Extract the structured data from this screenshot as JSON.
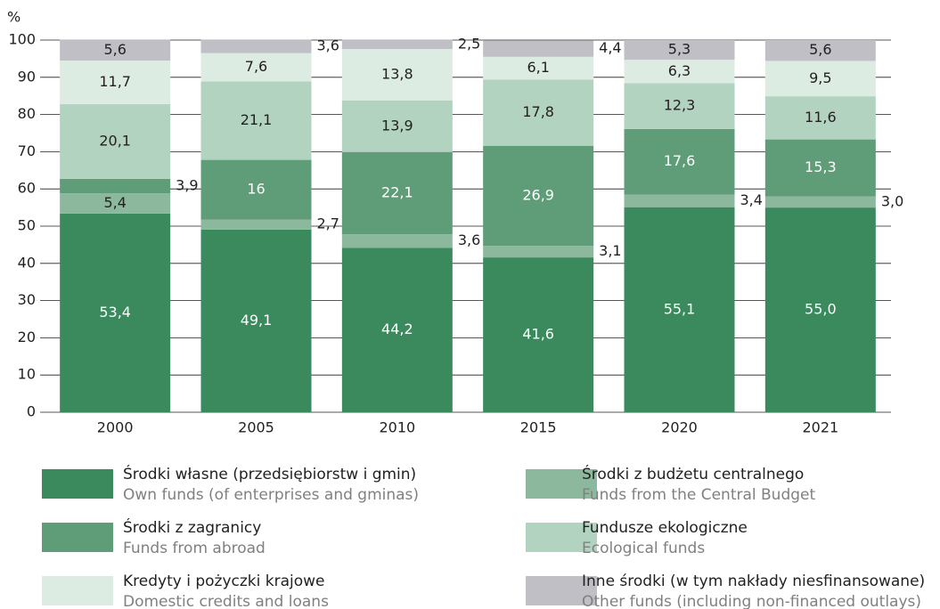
{
  "chart_data": {
    "type": "stacked_bar",
    "y_label": "%",
    "categories": [
      "2000",
      "2005",
      "2010",
      "2015",
      "2020",
      "2021"
    ],
    "ylim": [
      0,
      100
    ],
    "yticks": [
      0,
      10,
      20,
      30,
      40,
      50,
      60,
      70,
      80,
      90,
      100
    ],
    "grid": true,
    "series": [
      {
        "name": "Środki własne (przedsiębiorstw i gmin)",
        "subname": "Own funds (of enterprises and gminas)",
        "color": "#3b8a5d",
        "values": [
          53.4,
          49.1,
          44.2,
          41.6,
          55.1,
          55.0
        ],
        "value_labels": [
          "53,4",
          "49,1",
          "44,2",
          "41,6",
          "55,1",
          "55,0"
        ]
      },
      {
        "name": "Środki z budżetu centralnego",
        "subname": "Funds from the Central Budget",
        "color": "#8cb99d",
        "values": [
          5.4,
          2.7,
          3.6,
          3.1,
          3.4,
          3.0
        ],
        "value_labels": [
          "5,4",
          "2,7",
          "3,6",
          "3,1",
          "3,4",
          "3,0"
        ]
      },
      {
        "name": "Środki z zagranicy",
        "subname": "Funds from abroad",
        "color": "#5f9c78",
        "values": [
          3.9,
          16,
          22.1,
          26.9,
          17.6,
          15.3
        ],
        "value_labels": [
          "3,9",
          "16",
          "22,1",
          "26,9",
          "17,6",
          "15,3"
        ]
      },
      {
        "name": "Fundusze ekologiczne",
        "subname": "Ecological funds",
        "color": "#b2d3bf",
        "values": [
          20.1,
          21.1,
          13.9,
          17.8,
          12.3,
          11.6
        ],
        "value_labels": [
          "20,1",
          "21,1",
          "13,9",
          "17,8",
          "12,3",
          "11,6"
        ]
      },
      {
        "name": "Kredyty i pożyczki krajowe",
        "subname": "Domestic credits and loans",
        "color": "#ddece2",
        "values": [
          11.7,
          7.6,
          13.8,
          6.1,
          6.3,
          9.5
        ],
        "value_labels": [
          "11,7",
          "7,6",
          "13,8",
          "6,1",
          "6,3",
          "9,5"
        ]
      },
      {
        "name": "Inne środki (w tym nakłady niesfinansowane)",
        "subname": "Other funds (including non-financed outlays)",
        "color": "#bfbfc5",
        "values": [
          5.6,
          3.6,
          2.5,
          4.4,
          5.3,
          5.6
        ],
        "value_labels": [
          "5,6",
          "3,6",
          "2,5",
          "4,4",
          "5,3",
          "5,6"
        ]
      }
    ]
  }
}
